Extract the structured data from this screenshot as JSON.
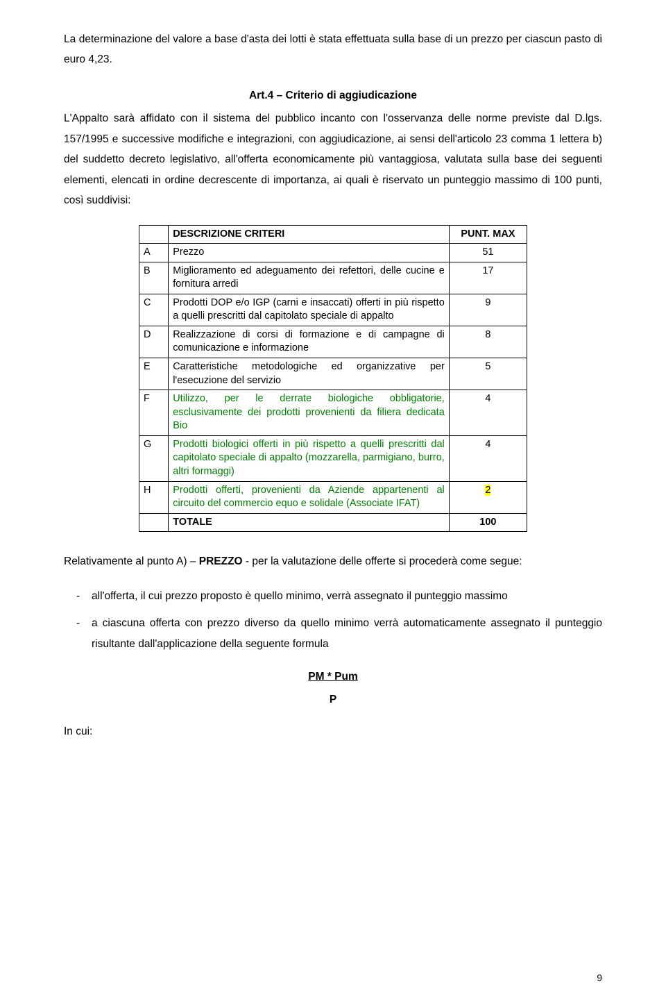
{
  "intro": {
    "p1": "La determinazione del valore a base d'asta dei lotti è stata effettuata sulla base di un prezzo per ciascun pasto di euro 4,23.",
    "heading": "Art.4 – Criterio di aggiudicazione",
    "p2": "L'Appalto sarà affidato con il sistema del  pubblico incanto con l'osservanza  delle norme previste dal D.lgs. 157/1995 e successive modifiche e integrazioni, con aggiudicazione, ai sensi dell'articolo 23 comma 1 lettera b) del suddetto decreto legislativo, all'offerta economicamente più vantaggiosa, valutata sulla base dei seguenti elementi, elencati in ordine decrescente di importanza, ai quali è riservato un punteggio massimo di 100 punti, così suddivisi:"
  },
  "table": {
    "headers": {
      "desc": "DESCRIZIONE CRITERI",
      "pts": "PUNT. MAX"
    },
    "rows": [
      {
        "letter": "A",
        "desc": "Prezzo",
        "pts": "51",
        "green": false,
        "highlight": false
      },
      {
        "letter": "B",
        "desc": "Miglioramento ed adeguamento dei refettori, delle cucine e fornitura arredi",
        "pts": "17",
        "green": false,
        "highlight": false
      },
      {
        "letter": "C",
        "desc": "Prodotti DOP e/o IGP  (carni e insaccati) offerti in più rispetto a quelli prescritti dal capitolato speciale di appalto",
        "pts": "9",
        "green": false,
        "highlight": false
      },
      {
        "letter": "D",
        "desc": "Realizzazione di corsi di formazione e di campagne di comunicazione e  informazione",
        "pts": "8",
        "green": false,
        "highlight": false
      },
      {
        "letter": "E",
        "desc": "Caratteristiche metodologiche ed organizzative per l'esecuzione del servizio",
        "pts": "5",
        "green": false,
        "highlight": false
      },
      {
        "letter": "F",
        "desc": "Utilizzo, per le derrate biologiche obbligatorie, esclusivamente dei prodotti provenienti da filiera dedicata Bio",
        "pts": "4",
        "green": true,
        "highlight": false
      },
      {
        "letter": "G",
        "desc": "Prodotti biologici offerti in più rispetto a quelli prescritti dal capitolato speciale di appalto (mozzarella, parmigiano, burro, altri formaggi)",
        "pts": "4",
        "green": true,
        "highlight": false
      },
      {
        "letter": "H",
        "desc": "Prodotti offerti, provenienti da Aziende appartenenti al circuito del commercio equo e solidale (Associate IFAT)",
        "pts": "2",
        "green": true,
        "highlight": true
      }
    ],
    "total_label": "TOTALE",
    "total_pts": "100"
  },
  "below": {
    "p1_prefix": "Relativamente al punto A) – ",
    "p1_bold": "PREZZO",
    "p1_suffix": " - per la valutazione delle offerte si procederà come segue:",
    "bullet1": "all'offerta, il cui prezzo proposto è quello minimo, verrà assegnato il punteggio massimo",
    "bullet2": "a ciascuna offerta con prezzo diverso da quello minimo verrà automaticamente assegnato il punteggio risultante dall'applicazione della seguente formula",
    "formula_num": "PM  *  Pum",
    "formula_denom": "P",
    "in_cui": "In cui:"
  },
  "page_num": "9",
  "colors": {
    "green": "#008000",
    "highlight": "#ffff00",
    "text": "#000000",
    "background": "#ffffff"
  }
}
